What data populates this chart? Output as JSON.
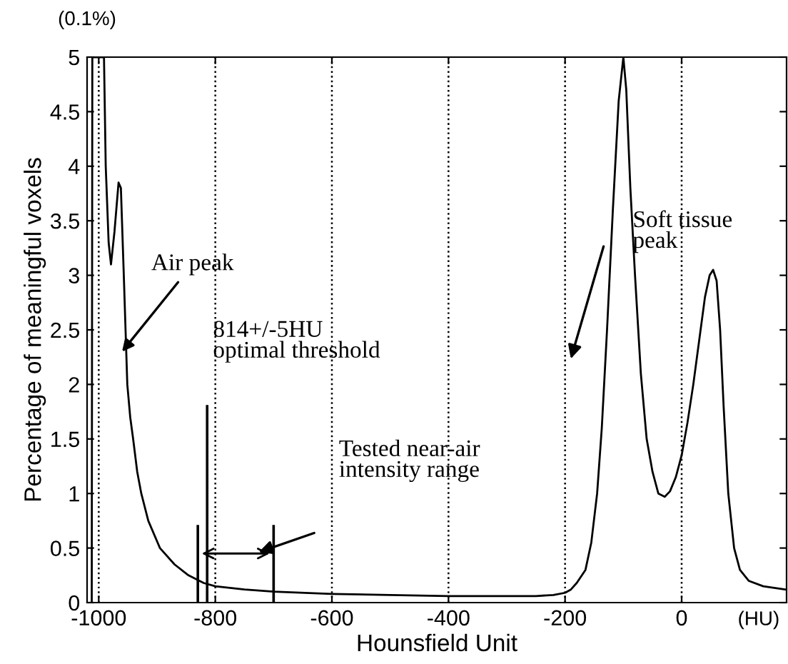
{
  "chart_data": {
    "type": "line",
    "xlabel": "Hounsfield Unit",
    "ylabel": "Percentage of meaningful voxels",
    "x": [
      -1012,
      -1011,
      -991,
      -988,
      -983,
      -979,
      -973,
      -966,
      -962,
      -957,
      -954,
      -951,
      -946,
      -941,
      -934,
      -927,
      -915,
      -895,
      -870,
      -846,
      -820,
      -800,
      -750,
      -700,
      -600,
      -500,
      -400,
      -300,
      -250,
      -220,
      -200,
      -190,
      -180,
      -165,
      -155,
      -145,
      -137,
      -128,
      -118,
      -108,
      -100,
      -95,
      -88,
      -80,
      -70,
      -60,
      -50,
      -40,
      -29,
      -20,
      -10,
      0,
      10,
      20,
      30,
      40,
      48,
      54,
      60,
      66,
      72,
      80,
      90,
      100,
      115,
      140,
      178
    ],
    "values": [
      0,
      5,
      5,
      4,
      3.3,
      3.1,
      3.4,
      3.85,
      3.8,
      3,
      2.5,
      2,
      1.7,
      1.5,
      1.2,
      1,
      0.75,
      0.5,
      0.35,
      0.25,
      0.18,
      0.15,
      0.12,
      0.1,
      0.08,
      0.07,
      0.06,
      0.06,
      0.06,
      0.07,
      0.09,
      0.12,
      0.18,
      0.3,
      0.55,
      1,
      1.6,
      2.5,
      3.6,
      4.6,
      5,
      4.7,
      3.8,
      3,
      2.1,
      1.5,
      1.2,
      1,
      0.97,
      1.02,
      1.15,
      1.35,
      1.65,
      2,
      2.4,
      2.8,
      3,
      3.05,
      2.95,
      2.5,
      1.8,
      1,
      0.5,
      0.3,
      0.2,
      0.15,
      0.12
    ],
    "color": "#000000",
    "marker": "none",
    "line_style": "solid",
    "xlim": [
      -1020,
      180
    ],
    "ylim": [
      0,
      5
    ],
    "xticks": [
      -1000,
      -800,
      -600,
      -400,
      -200,
      0
    ],
    "yticks": [
      0,
      0.5,
      1,
      1.5,
      2,
      2.5,
      3,
      3.5,
      4,
      4.5,
      5
    ],
    "grid": "x",
    "ref_lines": [
      {
        "axis": "x",
        "value": -814,
        "label": "814+/-5HU\noptimal threshold"
      },
      {
        "axis": "x",
        "value": -830,
        "label": null
      },
      {
        "axis": "x",
        "value": -700,
        "label": null
      }
    ],
    "annotations": [
      "(0.1%)",
      "(HU)",
      {
        "text": "Air peak",
        "x": -960,
        "y": 2.3
      },
      "Tested near-air\nintensity range",
      "Soft tissue\npeak"
    ]
  }
}
